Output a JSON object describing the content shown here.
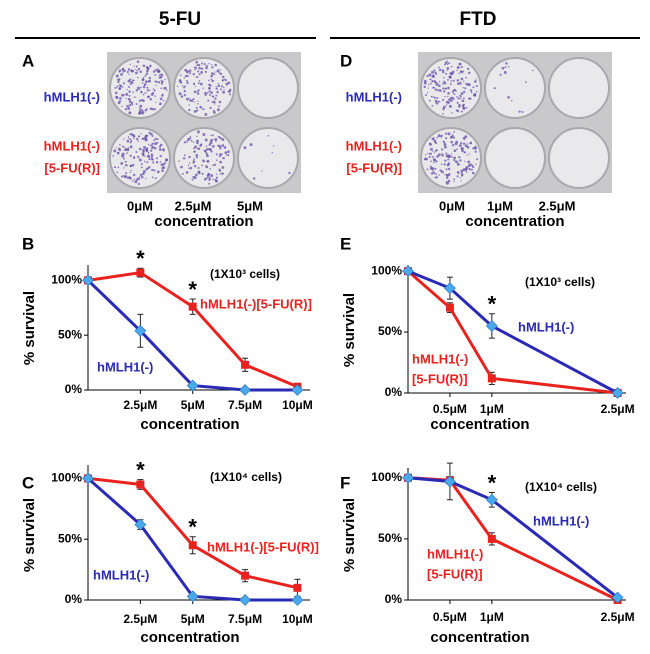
{
  "columns": [
    {
      "title": "5-FU"
    },
    {
      "title": "FTD"
    }
  ],
  "photos": [
    {
      "panel": "A",
      "row_labels": [
        [
          "hMLH1(-)"
        ],
        [
          "hMLH1(-)",
          "[5-FU(R)]"
        ]
      ],
      "col_labels": [
        "0μM",
        "2.5μM",
        "5μM"
      ],
      "xlabel": "concentration"
    },
    {
      "panel": "D",
      "row_labels": [
        [
          "hMLH1(-)"
        ],
        [
          "hMLH1(-)",
          "[5-FU(R)]"
        ]
      ],
      "col_labels": [
        "0μM",
        "1μM",
        "2.5μM"
      ],
      "xlabel": "concentration"
    }
  ],
  "chart_data": [
    {
      "panel": "B",
      "type": "line",
      "ylabel": "% survival",
      "xlabel": "concentration",
      "note": "(1X10³ cells)",
      "x": [
        0,
        2.5,
        5,
        7.5,
        10
      ],
      "xlim": [
        0,
        10.6
      ],
      "xticks": [
        {
          "value": 2.5,
          "label": "2.5μM"
        },
        {
          "value": 5,
          "label": "5μM"
        },
        {
          "value": 7.5,
          "label": "7.5μM"
        },
        {
          "value": 10,
          "label": "10μM"
        }
      ],
      "ylim": [
        0,
        114
      ],
      "yticks": [
        {
          "value": 0,
          "label": "0%"
        },
        {
          "value": 50,
          "label": "50%"
        },
        {
          "value": 100,
          "label": "100%"
        }
      ],
      "series": [
        {
          "name": "hMLH1(-)[5-FU(R)]",
          "color": "#e8231f",
          "marker": "square",
          "marker_color": "#e8231f",
          "values": [
            100,
            107,
            76,
            23,
            3
          ],
          "errors": [
            0,
            4,
            7,
            6,
            2
          ]
        },
        {
          "name": "hMLH1(-)",
          "color": "#2a2ab5",
          "marker": "diamond",
          "marker_color": "#4aa8ec",
          "values": [
            100,
            54,
            4,
            0,
            0
          ],
          "errors": [
            0,
            15,
            1,
            0,
            0
          ]
        }
      ],
      "annotations": [
        {
          "text": "*",
          "x": 2.5
        },
        {
          "text": "*",
          "x": 5
        }
      ]
    },
    {
      "panel": "C",
      "type": "line",
      "ylabel": "% survival",
      "xlabel": "concentration",
      "note": "(1X10⁴ cells)",
      "x": [
        0,
        2.5,
        5,
        7.5,
        10
      ],
      "xlim": [
        0,
        10.6
      ],
      "xticks": [
        {
          "value": 2.5,
          "label": "2.5μM"
        },
        {
          "value": 5,
          "label": "5μM"
        },
        {
          "value": 7.5,
          "label": "7.5μM"
        },
        {
          "value": 10,
          "label": "10μM"
        }
      ],
      "ylim": [
        0,
        111
      ],
      "yticks": [
        {
          "value": 0,
          "label": "0%"
        },
        {
          "value": 50,
          "label": "50%"
        },
        {
          "value": 100,
          "label": "100%"
        }
      ],
      "series": [
        {
          "name": "hMLH1(-)[5-FU(R)]",
          "color": "#e8231f",
          "marker": "square",
          "marker_color": "#e8231f",
          "values": [
            100,
            95,
            45,
            20,
            10
          ],
          "errors": [
            0,
            4,
            7,
            5,
            7
          ]
        },
        {
          "name": "hMLH1(-)",
          "color": "#2a2ab5",
          "marker": "diamond",
          "marker_color": "#4aa8ec",
          "values": [
            100,
            62,
            3,
            0,
            0
          ],
          "errors": [
            0,
            4,
            1,
            0,
            0
          ]
        }
      ],
      "annotations": [
        {
          "text": "*",
          "x": 2.5
        },
        {
          "text": "*",
          "x": 5
        }
      ]
    },
    {
      "panel": "E",
      "type": "line",
      "ylabel": "% survival",
      "xlabel": "concentration",
      "note": "(1X10³ cells)",
      "x": [
        0,
        0.5,
        1,
        2.5
      ],
      "xlim": [
        0,
        2.6
      ],
      "xticks": [
        {
          "value": 0.5,
          "label": "0.5μM"
        },
        {
          "value": 1,
          "label": "1μM"
        },
        {
          "value": 2.5,
          "label": "2.5μM"
        }
      ],
      "ylim": [
        0,
        105
      ],
      "yticks": [
        {
          "value": 0,
          "label": "0%"
        },
        {
          "value": 50,
          "label": "50%"
        },
        {
          "value": 100,
          "label": "100%"
        }
      ],
      "series": [
        {
          "name": [
            "hMLH1(-)",
            "[5-FU(R)]"
          ],
          "color": "#e8231f",
          "marker": "square",
          "marker_color": "#e8231f",
          "values": [
            100,
            70,
            12,
            0
          ],
          "errors": [
            0,
            4,
            5,
            1
          ]
        },
        {
          "name": "hMLH1(-)",
          "color": "#2a2ab5",
          "marker": "diamond",
          "marker_color": "#4aa8ec",
          "values": [
            100,
            86,
            55,
            0
          ],
          "errors": [
            0,
            9,
            10,
            1
          ]
        }
      ],
      "annotations": [
        {
          "text": "*",
          "x": 1
        }
      ]
    },
    {
      "panel": "F",
      "type": "line",
      "ylabel": "% survival",
      "xlabel": "concentration",
      "note": "(1X10⁴ cells)",
      "x": [
        0,
        0.5,
        1,
        2.5
      ],
      "xlim": [
        0,
        2.6
      ],
      "xticks": [
        {
          "value": 0.5,
          "label": "0.5μM"
        },
        {
          "value": 1,
          "label": "1μM"
        },
        {
          "value": 2.5,
          "label": "2.5μM"
        }
      ],
      "ylim": [
        0,
        108
      ],
      "yticks": [
        {
          "value": 0,
          "label": "0%"
        },
        {
          "value": 50,
          "label": "50%"
        },
        {
          "value": 100,
          "label": "100%"
        }
      ],
      "series": [
        {
          "name": [
            "hMLH1(-)",
            "[5-FU(R)]"
          ],
          "color": "#e8231f",
          "marker": "square",
          "marker_color": "#e8231f",
          "values": [
            100,
            98,
            50,
            0
          ],
          "errors": [
            0,
            3,
            5,
            1
          ]
        },
        {
          "name": "hMLH1(-)",
          "color": "#2a2ab5",
          "marker": "diamond",
          "marker_color": "#4aa8ec",
          "values": [
            100,
            97,
            82,
            2
          ],
          "errors": [
            0,
            15,
            6,
            1
          ]
        }
      ],
      "annotations": [
        {
          "text": "*",
          "x": 1
        }
      ]
    }
  ]
}
